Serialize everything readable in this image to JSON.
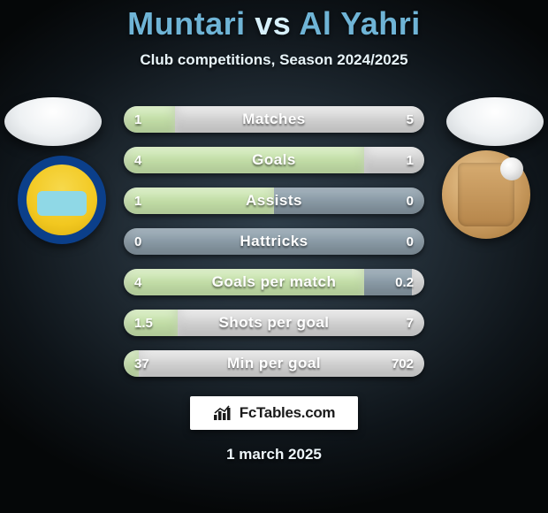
{
  "title": {
    "player1": "Muntari",
    "vs": "vs",
    "player2": "Al Yahri"
  },
  "subtitle": "Club competitions, Season 2024/2025",
  "footer_date": "1 march 2025",
  "brand": "FcTables.com",
  "colors": {
    "fill_left": "#c7e3ab",
    "fill_right": "#d6d6d6",
    "track": "#8fa0ac"
  },
  "stats": [
    {
      "label": "Matches",
      "left_val": "1",
      "right_val": "5",
      "left_pct": 17,
      "right_pct": 83
    },
    {
      "label": "Goals",
      "left_val": "4",
      "right_val": "1",
      "left_pct": 80,
      "right_pct": 20
    },
    {
      "label": "Assists",
      "left_val": "1",
      "right_val": "0",
      "left_pct": 50,
      "right_pct": 0
    },
    {
      "label": "Hattricks",
      "left_val": "0",
      "right_val": "0",
      "left_pct": 0,
      "right_pct": 0
    },
    {
      "label": "Goals per match",
      "left_val": "4",
      "right_val": "0.2",
      "left_pct": 80,
      "right_pct": 4
    },
    {
      "label": "Shots per goal",
      "left_val": "1.5",
      "right_val": "7",
      "left_pct": 18,
      "right_pct": 82
    },
    {
      "label": "Min per goal",
      "left_val": "37",
      "right_val": "702",
      "left_pct": 5,
      "right_pct": 95
    }
  ]
}
